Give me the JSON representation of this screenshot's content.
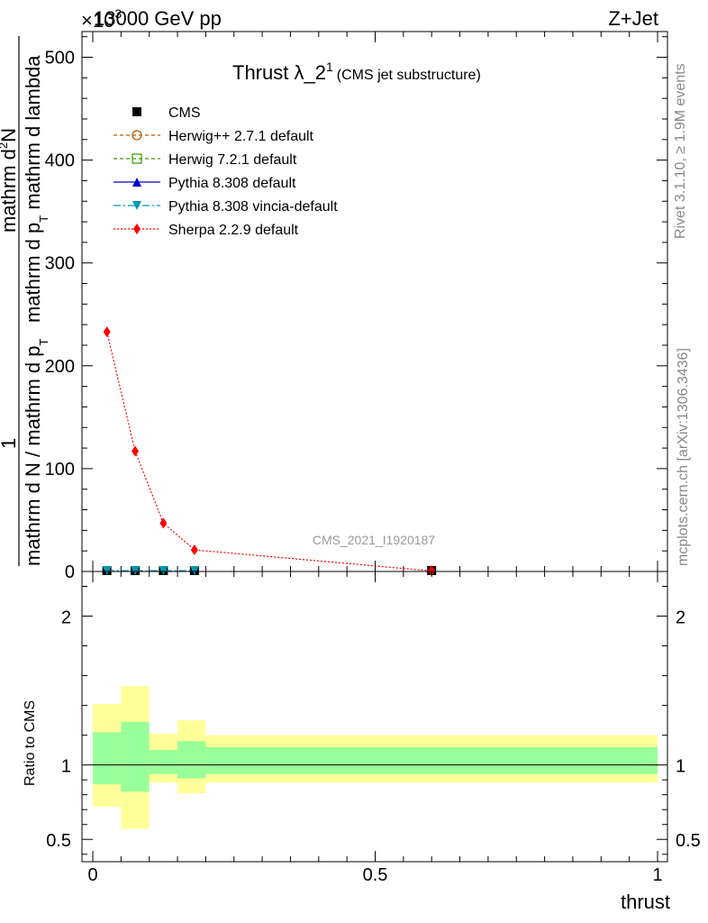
{
  "header": {
    "left": "13000 GeV pp",
    "right": "Z+Jet",
    "exponent_base": "×10",
    "exponent_power": "3"
  },
  "side_text": {
    "rivet": "Rivet 3.1.10, ≥ 1.9M events",
    "mcplots": "mcplots.cern.ch [arXiv:1306.3436]"
  },
  "colors": {
    "cms": "#000000",
    "herwigpp": "#b35900",
    "herwig7": "#339900",
    "pythia": "#0000cc",
    "vincia": "#0099b3",
    "sherpa": "#ff0000",
    "band_outer": "#ffff99",
    "band_inner": "#99ff99"
  },
  "chart_data": [
    {
      "type": "line",
      "title_main": "Thrust λ_2",
      "title_sup": "1",
      "title_sub": "(CMS jet substructure)",
      "watermark": "CMS_2021_I1920187",
      "ylabel": {
        "prefix": "1",
        "prefix_den": "mathrm d N / mathrm d p",
        "num": "mathrm d",
        "num_sup": "2",
        "num_end": "N",
        "den_a": "mathrm d p",
        "den_b": "mathrm d lambda",
        "sub_t": "T"
      },
      "xlim": [
        0,
        1
      ],
      "ylim": [
        0,
        525
      ],
      "yticks": [
        0,
        100,
        200,
        300,
        400,
        500
      ],
      "ytick_labels": [
        "0",
        "100",
        "200",
        "300",
        "400",
        "500"
      ],
      "legend": [
        {
          "key": "cms",
          "label": "CMS",
          "style": "square-solid"
        },
        {
          "key": "herwigpp",
          "label": "Herwig++ 2.7.1 default",
          "style": "circle-open-dashed"
        },
        {
          "key": "herwig7",
          "label": "Herwig 7.2.1 default",
          "style": "square-open-dashed"
        },
        {
          "key": "pythia",
          "label": "Pythia 8.308 default",
          "style": "triangle-up-solid"
        },
        {
          "key": "vincia",
          "label": "Pythia 8.308 vincia-default",
          "style": "triangle-down-dashdot"
        },
        {
          "key": "sherpa",
          "label": "Sherpa 2.2.9 default",
          "style": "diamond-dotted"
        }
      ],
      "series": [
        {
          "key": "cms",
          "points": [
            [
              0.025,
              0.8
            ],
            [
              0.075,
              0.8
            ],
            [
              0.125,
              0.8
            ],
            [
              0.18,
              0.8
            ],
            [
              0.6,
              0.5
            ]
          ]
        },
        {
          "key": "vincia",
          "points": [
            [
              0.025,
              0.8
            ],
            [
              0.075,
              0.8
            ],
            [
              0.125,
              0.8
            ],
            [
              0.18,
              0.8
            ]
          ]
        },
        {
          "key": "sherpa",
          "points": [
            [
              0.025,
              233
            ],
            [
              0.075,
              117
            ],
            [
              0.125,
              47
            ],
            [
              0.18,
              21
            ],
            [
              0.6,
              0.5
            ]
          ]
        }
      ]
    },
    {
      "type": "area",
      "ylabel": "Ratio to CMS",
      "xlabel": "thrust",
      "xlim": [
        0,
        1
      ],
      "ylim": [
        0.35,
        2.3
      ],
      "yticks": [
        0.5,
        1,
        2
      ],
      "ytick_labels": [
        "0.5",
        "1",
        "2"
      ],
      "xticks": [
        0,
        0.5,
        1
      ],
      "xtick_labels": [
        "0",
        "0.5",
        "1"
      ],
      "bins": [
        {
          "x0": 0.0,
          "x1": 0.05,
          "outer": [
            0.72,
            1.41
          ],
          "inner": [
            0.87,
            1.22
          ]
        },
        {
          "x0": 0.05,
          "x1": 0.1,
          "outer": [
            0.57,
            1.53
          ],
          "inner": [
            0.82,
            1.29
          ]
        },
        {
          "x0": 0.1,
          "x1": 0.15,
          "outer": [
            0.88,
            1.21
          ],
          "inner": [
            0.94,
            1.1
          ]
        },
        {
          "x0": 0.15,
          "x1": 0.2,
          "outer": [
            0.81,
            1.3
          ],
          "inner": [
            0.91,
            1.16
          ]
        },
        {
          "x0": 0.2,
          "x1": 1.0,
          "outer": [
            0.88,
            1.2
          ],
          "inner": [
            0.94,
            1.12
          ]
        }
      ],
      "reference": 1
    }
  ]
}
